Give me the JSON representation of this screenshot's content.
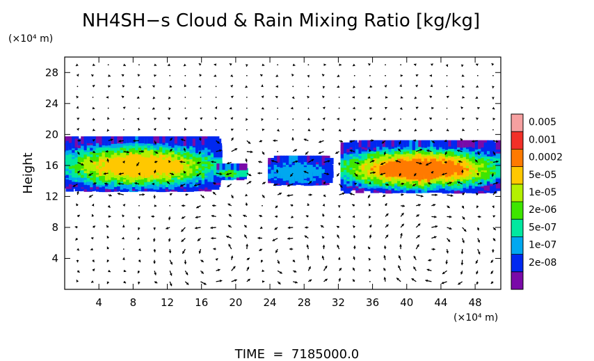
{
  "chart_data": {
    "type": "heatmap",
    "title": "NH4SH−s Cloud & Rain Mixing Ratio [kg/kg]",
    "ylabel": "Height",
    "yunit": "(×10⁴ m)",
    "xunit": "(×10⁴ m)",
    "x_ticks": [
      4,
      8,
      12,
      16,
      20,
      24,
      28,
      32,
      36,
      40,
      44,
      48
    ],
    "y_ticks": [
      4,
      8,
      12,
      16,
      20,
      24,
      28
    ],
    "xlim": [
      0,
      51
    ],
    "ylim": [
      0,
      30
    ],
    "footer": "TIME  =  7185000.0",
    "colorbar": {
      "labels": [
        "0.005",
        "0.001",
        "0.0002",
        "5e-05",
        "1e-05",
        "2e-06",
        "5e-07",
        "1e-07",
        "2e-08"
      ],
      "colors": [
        "#f6a0a0",
        "#f23028",
        "#ff7a00",
        "#ffc800",
        "#b4f000",
        "#3ee600",
        "#00e8a0",
        "#00a8f0",
        "#0028f0",
        "#7a0aa8"
      ]
    },
    "cloud_regions": [
      {
        "x": [
          0,
          18
        ],
        "y": [
          13,
          19.5
        ],
        "peak_level": "0.0002"
      },
      {
        "x": [
          18,
          21
        ],
        "y": [
          14.5,
          16
        ],
        "peak_level": "1e-05"
      },
      {
        "x": [
          24,
          31
        ],
        "y": [
          13.8,
          17
        ],
        "peak_level": "5e-07"
      },
      {
        "x": [
          32.5,
          51
        ],
        "y": [
          12.8,
          19
        ],
        "peak_level": "0.001"
      }
    ]
  }
}
